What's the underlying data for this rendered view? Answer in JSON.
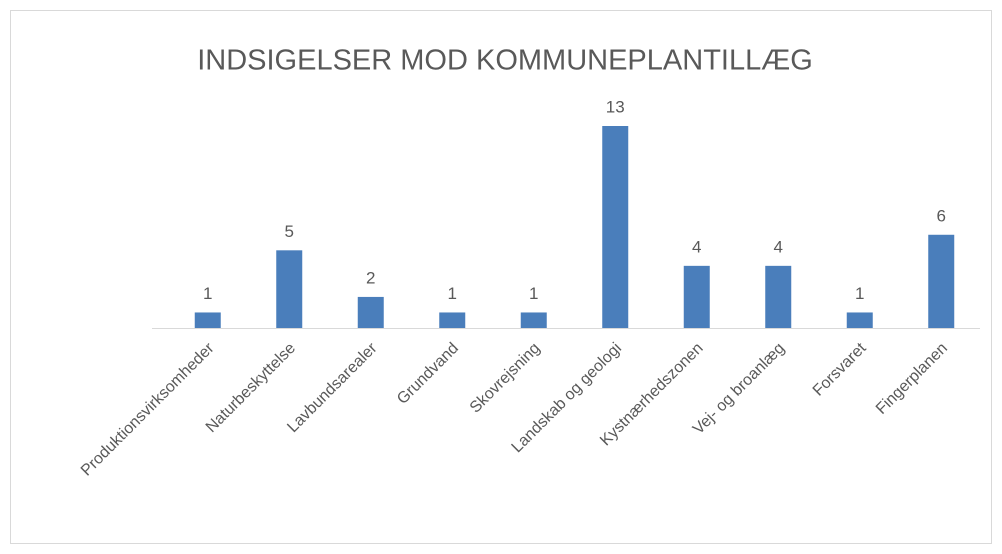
{
  "chart_data": {
    "type": "bar",
    "title": "INDSIGELSER MOD KOMMUNEPLANTILLÆG",
    "categories": [
      "Produktionsvirksomheder",
      "Naturbeskyttelse",
      "Lavbundsarealer",
      "Grundvand",
      "Skovrejsning",
      "Landskab og geologi",
      "Kystnærhedszonen",
      "Vej- og broanlæg",
      "Forsvaret",
      "Fingerplanen"
    ],
    "values": [
      1,
      5,
      2,
      1,
      1,
      13,
      4,
      4,
      1,
      6
    ],
    "color": "#4a7ebb"
  }
}
